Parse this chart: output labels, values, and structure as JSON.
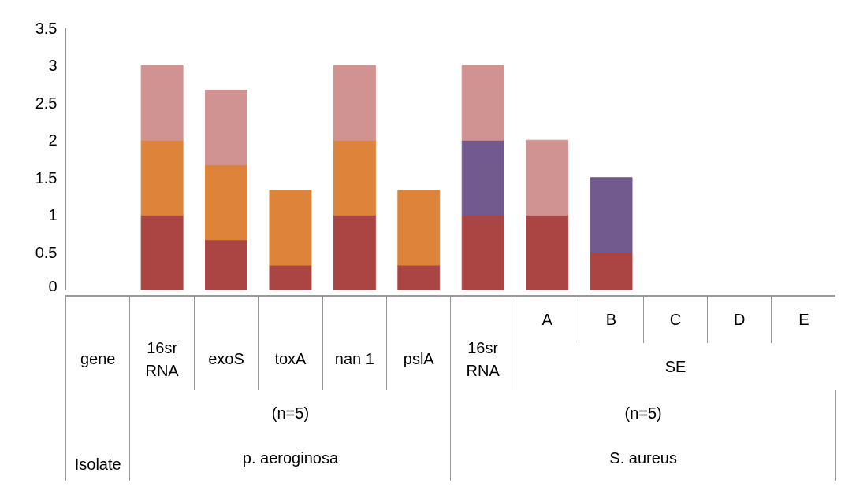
{
  "chart_data": {
    "type": "bar",
    "stacked": true,
    "categories": [
      "gene",
      "16sr RNA",
      "exoS",
      "toxA",
      "nan 1",
      "pslA",
      "16sr RNA",
      "A",
      "B",
      "C",
      "D",
      "E"
    ],
    "series": [
      {
        "color": "#ab4543",
        "values": [
          null,
          1,
          0.67,
          0.33,
          1,
          0.33,
          1,
          1,
          0.5,
          null,
          null,
          null
        ]
      },
      {
        "color": "#dd833a",
        "values": [
          null,
          1,
          1,
          1,
          1,
          1,
          null,
          null,
          null,
          null,
          null,
          null
        ]
      },
      {
        "color": "#72598e",
        "values": [
          null,
          null,
          null,
          null,
          null,
          null,
          1,
          null,
          1,
          null,
          null,
          null
        ]
      },
      {
        "color": "#d09391",
        "values": [
          null,
          1,
          1,
          null,
          1,
          null,
          1,
          1,
          null,
          null,
          null,
          null
        ]
      }
    ],
    "ylim": [
      0,
      3.5
    ],
    "yticks": [
      0,
      0.5,
      1,
      1.5,
      2,
      2.5,
      3,
      3.5
    ],
    "grid": false,
    "annotations": [
      "SE",
      "(n=5)",
      "p. aeroginosa",
      "(n=5)",
      "S. aureus",
      "Isolate"
    ]
  }
}
